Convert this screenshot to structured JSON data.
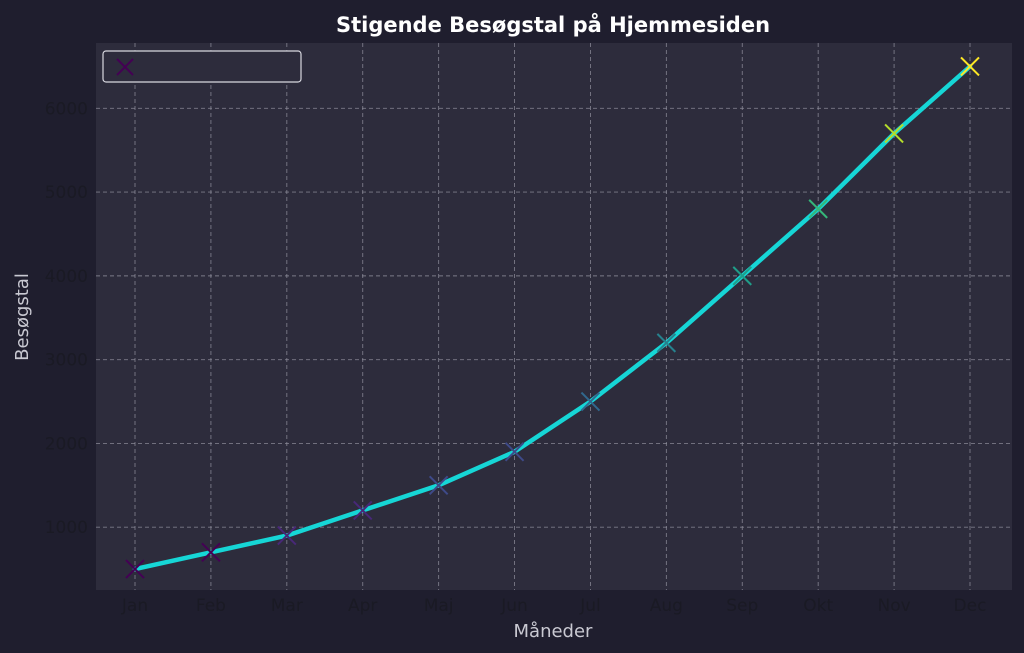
{
  "chart_data": {
    "type": "line",
    "title": "Stigende Besøgstal på Hjemmesiden",
    "xlabel": "Måneder",
    "ylabel": "Besøgstal",
    "categories": [
      "Jan",
      "Feb",
      "Mar",
      "Apr",
      "Maj",
      "Jun",
      "Jul",
      "Aug",
      "Sep",
      "Okt",
      "Nov",
      "Dec"
    ],
    "series": [
      {
        "values": [
          500,
          700,
          900,
          1200,
          1500,
          1900,
          2500,
          3200,
          4000,
          4800,
          5700,
          6500
        ]
      }
    ],
    "ylim": [
      250,
      6780
    ],
    "yticks": [
      1000,
      2000,
      3000,
      4000,
      5000,
      6000
    ],
    "grid": true,
    "legend_placement": "top-left",
    "line_color": "#16d6d6",
    "marker": "x",
    "marker_colormap": [
      "#440154",
      "#482878",
      "#3e4a89",
      "#31688e",
      "#26828e",
      "#1f9e89",
      "#35b779",
      "#6ece58",
      "#b5de2b",
      "#fde725"
    ],
    "colors": {
      "page_background": "#1f1e2e",
      "plot_background": "#2d2c3c",
      "grid": "#8f8e9c"
    }
  }
}
